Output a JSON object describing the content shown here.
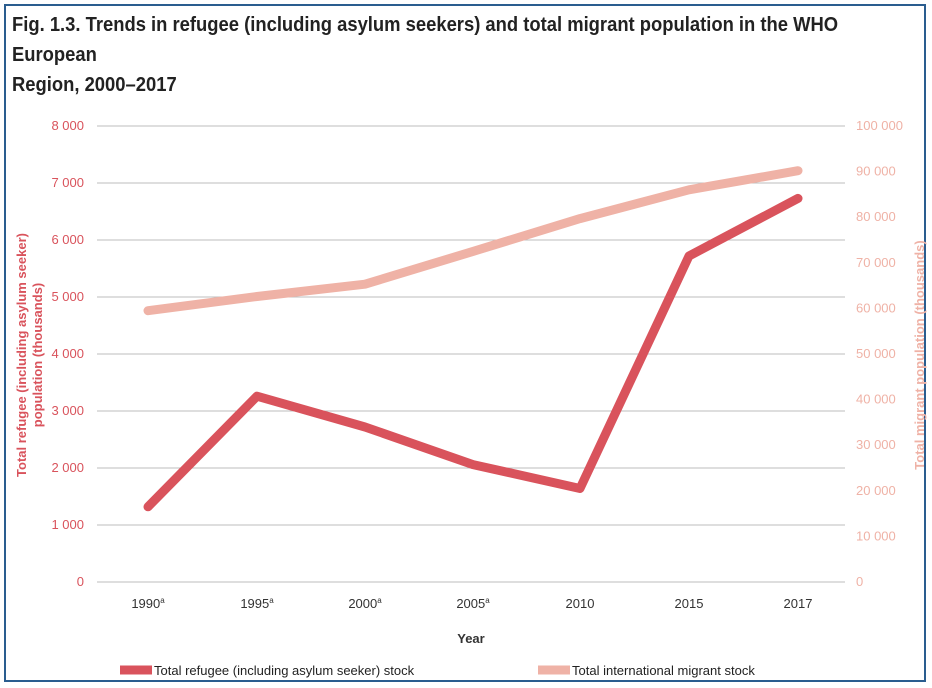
{
  "chart_data": {
    "type": "line",
    "title_line1": "Fig. 1.3. Trends in refugee (including asylum seekers) and total migrant population in the WHO European",
    "title_line2": "Region, 2000–2017",
    "xlabel": "Year",
    "categories": [
      "1990a",
      "1995a",
      "2000a",
      "2005a",
      "2010",
      "2015",
      "2017"
    ],
    "category_labels": [
      {
        "base": "1990",
        "sup": "a"
      },
      {
        "base": "1995",
        "sup": "a"
      },
      {
        "base": "2000",
        "sup": "a"
      },
      {
        "base": "2005",
        "sup": "a"
      },
      {
        "base": "2010",
        "sup": ""
      },
      {
        "base": "2015",
        "sup": ""
      },
      {
        "base": "2017",
        "sup": ""
      }
    ],
    "y_left": {
      "label_line1": "Total refugee (including asylum seeker)",
      "label_line2": "population (thousands)",
      "ylim": [
        0,
        8000
      ],
      "ticks": [
        0,
        1000,
        2000,
        3000,
        4000,
        5000,
        6000,
        7000,
        8000
      ],
      "tick_labels": [
        "0",
        "1 000",
        "2 000",
        "3 000",
        "4 000",
        "5 000",
        "6 000",
        "7 000",
        "8 000"
      ],
      "color": "#d9535c"
    },
    "y_right": {
      "label": "Total migrant population (thousands)",
      "ylim": [
        0,
        100000
      ],
      "ticks": [
        0,
        10000,
        20000,
        30000,
        40000,
        50000,
        60000,
        70000,
        80000,
        90000,
        100000
      ],
      "tick_labels": [
        "0",
        "10 000",
        "20 000",
        "30 000",
        "40 000",
        "50 000",
        "60 000",
        "70 000",
        "80 000",
        "90 000",
        "100 000"
      ],
      "color": "#efb2a6"
    },
    "grid": true,
    "legend_position": "bottom",
    "series": [
      {
        "name": "Total refugee (including asylum seeker) stock",
        "axis": "left",
        "color": "#d9535c",
        "values": [
          1320,
          3260,
          2720,
          2060,
          1640,
          5720,
          6730
        ]
      },
      {
        "name": "Total international migrant stock",
        "axis": "right",
        "color": "#efb2a6",
        "values": [
          59500,
          62600,
          65300,
          72500,
          79700,
          86000,
          90200
        ]
      }
    ]
  }
}
